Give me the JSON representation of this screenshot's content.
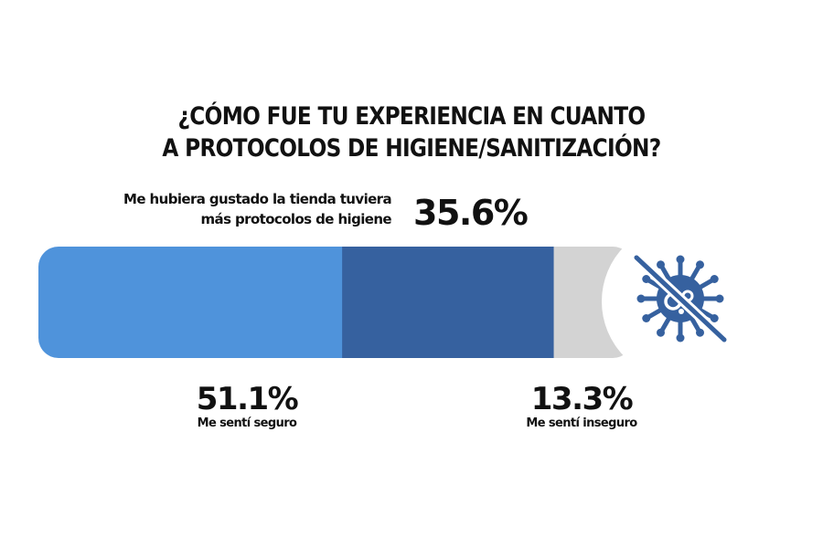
{
  "chart_data": {
    "type": "bar",
    "stacked": true,
    "orientation": "horizontal",
    "title": [
      "¿CÓMO FUE TU EXPERIENCIA EN CUANTO",
      "A PROTOCOLOS DE HIGIENE/SANITIZACIÓN?"
    ],
    "segments": [
      {
        "label": "Me sentí seguro",
        "value": 51.1,
        "value_label": "51.1%",
        "color": "#4f93db"
      },
      {
        "label": "Me hubiera gustado la tienda tuviera más protocolos de higiene",
        "label_lines": [
          "Me hubiera gustado la tienda tuviera",
          "más protocolos de higiene"
        ],
        "value": 35.6,
        "value_label": "35.6%",
        "color": "#36619f"
      },
      {
        "label": "Me sentí inseguro",
        "value": 13.3,
        "value_label": "13.3%",
        "color": "#d3d3d3"
      }
    ],
    "total": 100
  },
  "icon": {
    "name": "crossed-out-virus-icon",
    "color": "#36619f"
  }
}
